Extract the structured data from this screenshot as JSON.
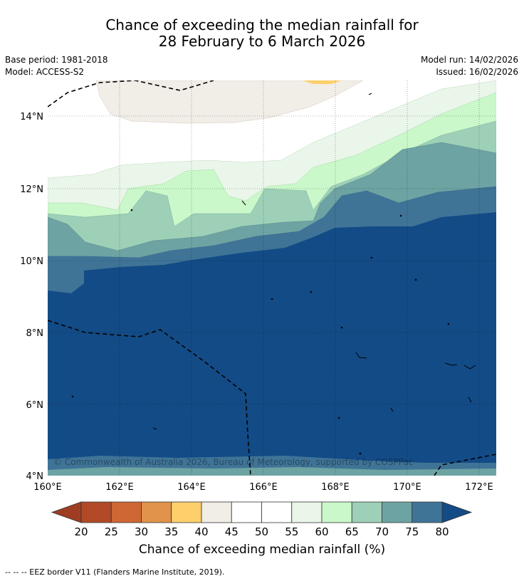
{
  "title_line1": "Chance of exceeding the median rainfall for",
  "title_line2": "28 February to 6 March 2026",
  "base_period": "Base period: 1981-2018",
  "model": "Model: ACCESS-S2",
  "model_run": "Model run: 14/02/2026",
  "issued": "Issued: 16/02/2026",
  "lat_labels": [
    "14°N",
    "12°N",
    "10°N",
    "8°N",
    "6°N",
    "4°N"
  ],
  "lon_labels": [
    "160°E",
    "162°E",
    "164°E",
    "166°E",
    "168°E",
    "170°E",
    "172°E"
  ],
  "copyright": "© Commonwealth of Australia 2026, Bureau of Meteorology, supported by COSPPac",
  "colorbar": {
    "ticks": [
      "20",
      "25",
      "30",
      "35",
      "40",
      "45",
      "50",
      "55",
      "60",
      "65",
      "70",
      "75",
      "80"
    ],
    "colors": [
      "#b24a27",
      "#cf6735",
      "#e09349",
      "#fdd06c",
      "#f1ede7",
      "#ffffff",
      "#ffffff",
      "#e9f6e9",
      "#caf8ca",
      "#9dd0b7",
      "#6ea3a3",
      "#3f7497"
    ],
    "low_extend_color": "#9f3d22",
    "high_extend_color": "#134b86",
    "title": "Chance of exceeding median rainfall (%)"
  },
  "footnote": "--  --  -- EEZ border V11 (Flanders Marine Institute, 2019)."
}
